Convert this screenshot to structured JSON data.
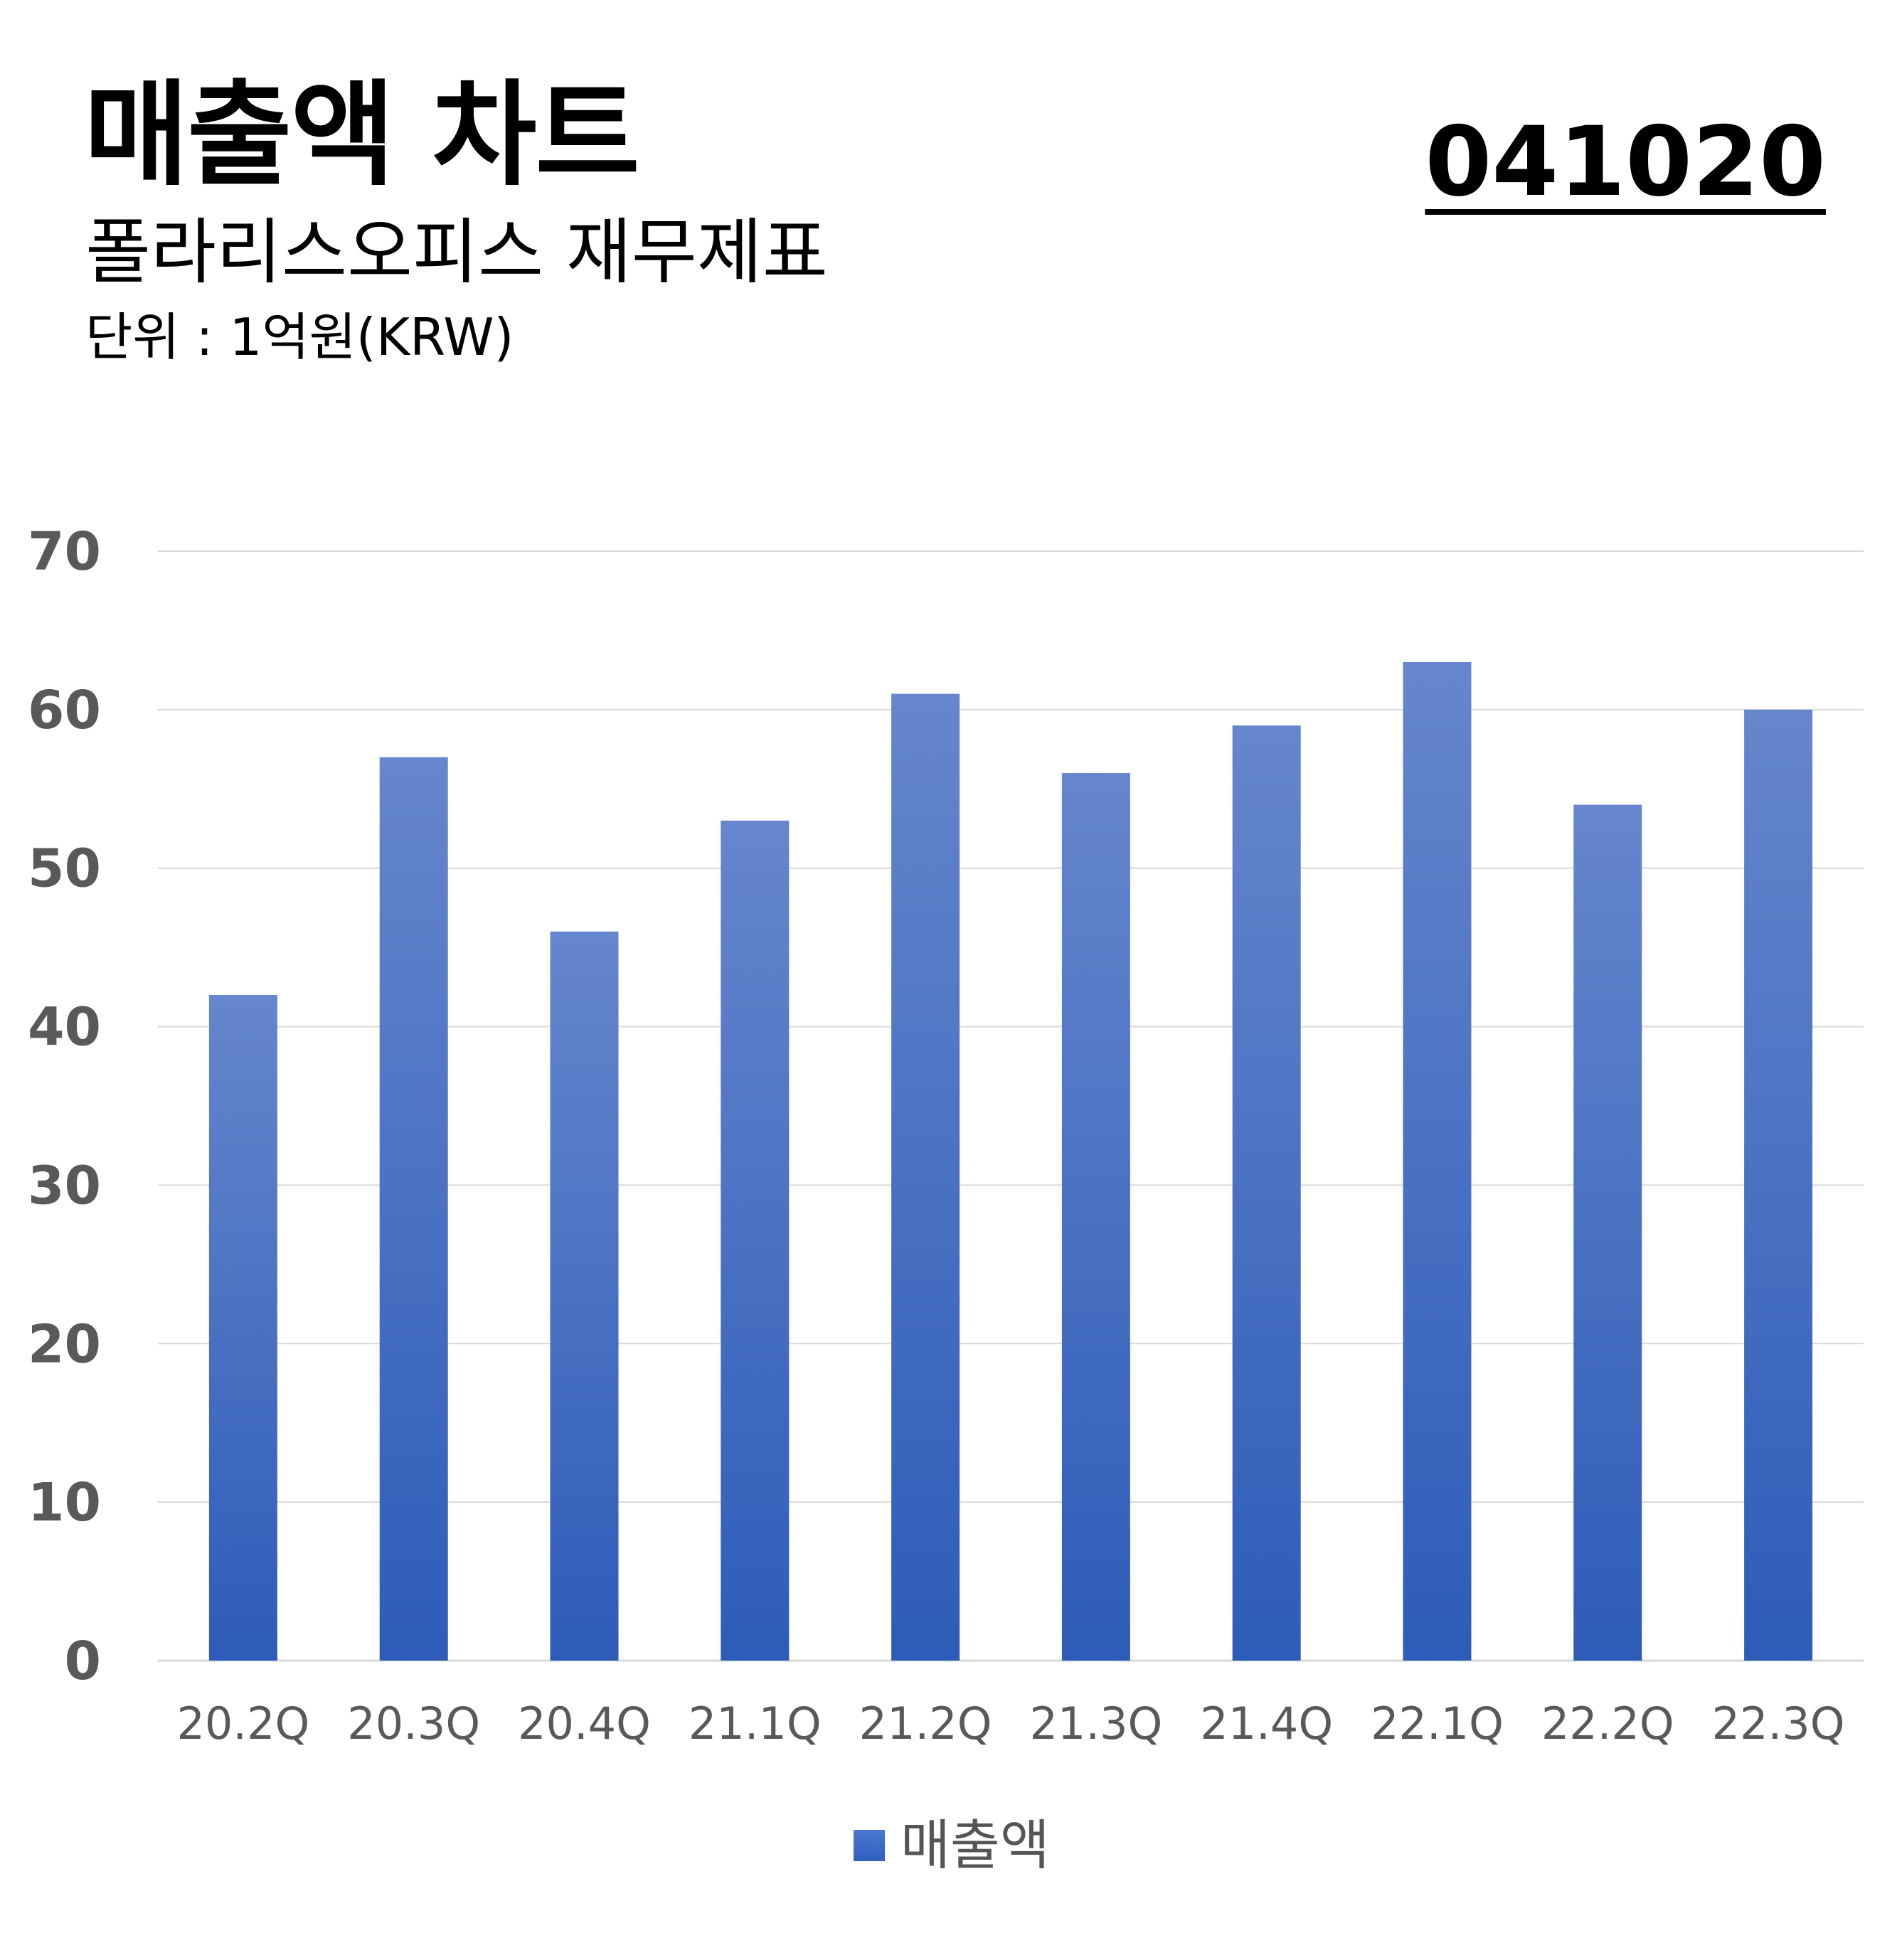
{
  "header": {
    "title": "매출액 차트",
    "subtitle": "폴라리스오피스 재무제표",
    "unit": "단위 : 1억원(KRW)",
    "code": "041020"
  },
  "colors": {
    "bar_top": "#6686cd",
    "bar_bottom": "#2d5cb8",
    "grid": "#d9d9d9",
    "axis_text": "#595959"
  },
  "chart_data": {
    "type": "bar",
    "categories": [
      "20.2Q",
      "20.3Q",
      "20.4Q",
      "21.1Q",
      "21.2Q",
      "21.3Q",
      "21.4Q",
      "22.1Q",
      "22.2Q",
      "22.3Q"
    ],
    "series": [
      {
        "name": "매출액",
        "values": [
          42,
          57,
          46,
          53,
          61,
          56,
          59,
          63,
          54,
          60
        ]
      }
    ],
    "ylim": [
      0,
      70
    ],
    "yticks": [
      0,
      10,
      20,
      30,
      40,
      50,
      60,
      70
    ],
    "grid": true,
    "legend": "bottom",
    "title": "",
    "xlabel": "",
    "ylabel": ""
  }
}
